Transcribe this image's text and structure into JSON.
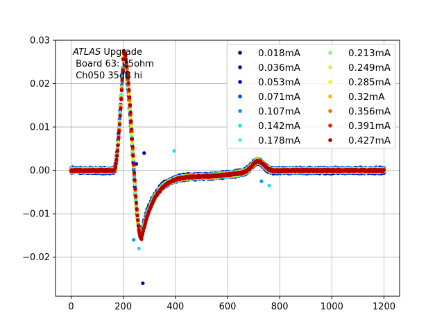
{
  "chart_data": {
    "type": "scatter",
    "title": "",
    "xlabel": "",
    "ylabel": "",
    "xlim": [
      -60,
      1260
    ],
    "ylim": [
      -0.029,
      0.03
    ],
    "xticks": [
      0,
      200,
      400,
      600,
      800,
      1000,
      1200
    ],
    "xtick_labels": [
      "0",
      "200",
      "400",
      "600",
      "800",
      "1000",
      "1200"
    ],
    "yticks": [
      0.03,
      0.02,
      0.01,
      0.0,
      -0.01,
      -0.02
    ],
    "ytick_labels": [
      "0.03",
      "0.02",
      "0.01",
      "0.00",
      "−0.01",
      "−0.02"
    ],
    "grid": true,
    "legend_position": "top-right",
    "legend_columns": 2,
    "annotation": {
      "line1_italic": "ATLAS",
      "line1_rest": " Upgrade",
      "line2": " Board 63: 25ohm",
      "line3": " Ch050 35dB hi"
    },
    "x_range": [
      0,
      1200
    ],
    "series": [
      {
        "name": "0.018mA",
        "color": "#00007f",
        "peak": 0.0255,
        "min": -0.0145
      },
      {
        "name": "0.036mA",
        "color": "#0000b7",
        "peak": 0.0258,
        "min": -0.0147
      },
      {
        "name": "0.053mA",
        "color": "#0000f1",
        "peak": 0.026,
        "min": -0.0149
      },
      {
        "name": "0.071mA",
        "color": "#004cff",
        "peak": 0.0262,
        "min": -0.015
      },
      {
        "name": "0.107mA",
        "color": "#0098ff",
        "peak": 0.0264,
        "min": -0.0151
      },
      {
        "name": "0.142mA",
        "color": "#19e2e2",
        "peak": 0.0266,
        "min": -0.0152
      },
      {
        "name": "0.178mA",
        "color": "#42ffb4",
        "peak": 0.0267,
        "min": -0.0153
      },
      {
        "name": "0.213mA",
        "color": "#7dff7a",
        "peak": 0.0268,
        "min": -0.0154
      },
      {
        "name": "0.249mA",
        "color": "#b7ff40",
        "peak": 0.0269,
        "min": -0.0155
      },
      {
        "name": "0.285mA",
        "color": "#f1f407",
        "peak": 0.027,
        "min": -0.0155
      },
      {
        "name": "0.32mA",
        "color": "#ffb000",
        "peak": 0.0271,
        "min": -0.0156
      },
      {
        "name": "0.356mA",
        "color": "#ff6800",
        "peak": 0.0272,
        "min": -0.0156
      },
      {
        "name": "0.391mA",
        "color": "#f11d00",
        "peak": 0.0273,
        "min": -0.0157
      },
      {
        "name": "0.427mA",
        "color": "#b20000",
        "peak": 0.0274,
        "min": -0.0157
      }
    ],
    "outliers": [
      {
        "x": 275,
        "y": -0.026,
        "color": "#0000b7"
      },
      {
        "x": 240,
        "y": -0.016,
        "color": "#0098ff"
      },
      {
        "x": 260,
        "y": -0.018,
        "color": "#19e2e2"
      },
      {
        "x": 280,
        "y": 0.004,
        "color": "#0000b7"
      },
      {
        "x": 250,
        "y": 0.0015,
        "color": "#0000f1"
      },
      {
        "x": 395,
        "y": 0.0045,
        "color": "#19e2e2"
      },
      {
        "x": 760,
        "y": -0.0035,
        "color": "#19e2e2"
      },
      {
        "x": 730,
        "y": -0.0025,
        "color": "#0098ff"
      }
    ]
  }
}
